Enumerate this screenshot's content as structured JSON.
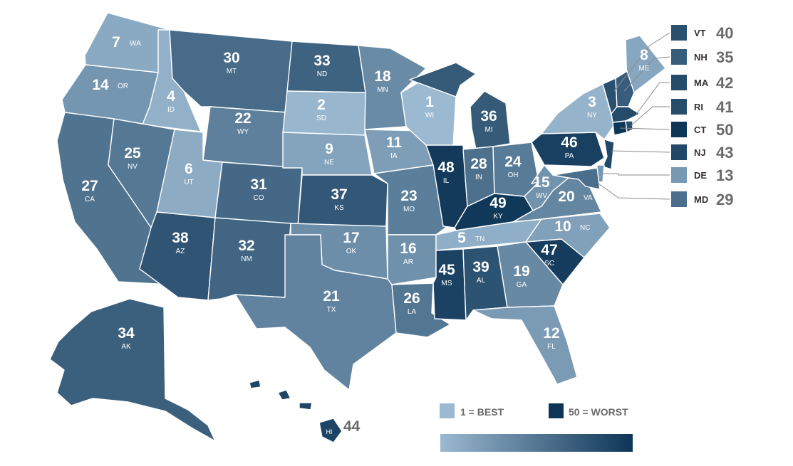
{
  "colors": {
    "best": "#9bb9d1",
    "worst": "#0d3556",
    "border": "#ffffff",
    "side_rank_text": "#6b6b6b",
    "side_abbr_text": "#333333"
  },
  "states": [
    {
      "abbr": "WA",
      "rank": "7"
    },
    {
      "abbr": "OR",
      "rank": "14"
    },
    {
      "abbr": "CA",
      "rank": "27"
    },
    {
      "abbr": "ID",
      "rank": "4"
    },
    {
      "abbr": "NV",
      "rank": "25"
    },
    {
      "abbr": "MT",
      "rank": "30"
    },
    {
      "abbr": "WY",
      "rank": "22"
    },
    {
      "abbr": "UT",
      "rank": "6"
    },
    {
      "abbr": "AZ",
      "rank": "38"
    },
    {
      "abbr": "CO",
      "rank": "31"
    },
    {
      "abbr": "NM",
      "rank": "32"
    },
    {
      "abbr": "ND",
      "rank": "33"
    },
    {
      "abbr": "SD",
      "rank": "2"
    },
    {
      "abbr": "NE",
      "rank": "9"
    },
    {
      "abbr": "KS",
      "rank": "37"
    },
    {
      "abbr": "OK",
      "rank": "17"
    },
    {
      "abbr": "TX",
      "rank": "21"
    },
    {
      "abbr": "MN",
      "rank": "18"
    },
    {
      "abbr": "IA",
      "rank": "11"
    },
    {
      "abbr": "MO",
      "rank": "23"
    },
    {
      "abbr": "AR",
      "rank": "16"
    },
    {
      "abbr": "LA",
      "rank": "26"
    },
    {
      "abbr": "WI",
      "rank": "1"
    },
    {
      "abbr": "IL",
      "rank": "48"
    },
    {
      "abbr": "MI",
      "rank": "36"
    },
    {
      "abbr": "IN",
      "rank": "28"
    },
    {
      "abbr": "OH",
      "rank": "24"
    },
    {
      "abbr": "KY",
      "rank": "49"
    },
    {
      "abbr": "TN",
      "rank": "5"
    },
    {
      "abbr": "MS",
      "rank": "45"
    },
    {
      "abbr": "AL",
      "rank": "39"
    },
    {
      "abbr": "GA",
      "rank": "19"
    },
    {
      "abbr": "FL",
      "rank": "12"
    },
    {
      "abbr": "SC",
      "rank": "47"
    },
    {
      "abbr": "NC",
      "rank": "10"
    },
    {
      "abbr": "VA",
      "rank": "20"
    },
    {
      "abbr": "WV",
      "rank": "15"
    },
    {
      "abbr": "PA",
      "rank": "46"
    },
    {
      "abbr": "NY",
      "rank": "3"
    },
    {
      "abbr": "ME",
      "rank": "8"
    },
    {
      "abbr": "AK",
      "rank": "34"
    },
    {
      "abbr": "HI",
      "rank": "44"
    }
  ],
  "small_states": [
    {
      "abbr": "VT",
      "rank": "40"
    },
    {
      "abbr": "NH",
      "rank": "35"
    },
    {
      "abbr": "MA",
      "rank": "42"
    },
    {
      "abbr": "RI",
      "rank": "41"
    },
    {
      "abbr": "CT",
      "rank": "50"
    },
    {
      "abbr": "NJ",
      "rank": "43"
    },
    {
      "abbr": "DE",
      "rank": "13"
    },
    {
      "abbr": "MD",
      "rank": "29"
    }
  ],
  "legend": {
    "best_label": "1 = BEST",
    "worst_label": "50 = WORST"
  }
}
